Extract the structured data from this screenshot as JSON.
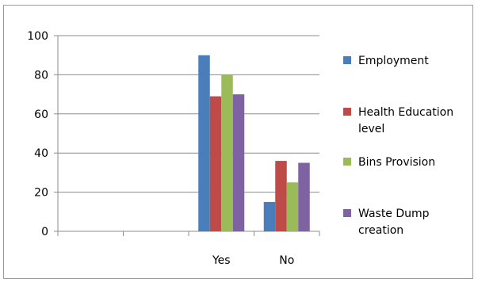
{
  "chart_data": {
    "type": "bar",
    "categories": [
      "",
      "",
      "Yes",
      "No"
    ],
    "ylim": [
      0,
      100
    ],
    "yticks": [
      0,
      20,
      40,
      60,
      80,
      100
    ],
    "grid": true,
    "legend_position": "right",
    "series": [
      {
        "name": "Employment",
        "color": "#4a7ebb",
        "values": [
          null,
          null,
          90,
          15
        ]
      },
      {
        "name": "Health Education level",
        "color": "#be4b48",
        "values": [
          null,
          null,
          69,
          36
        ]
      },
      {
        "name": "Bins Provision",
        "color": "#9bbb59",
        "values": [
          null,
          null,
          80,
          25
        ]
      },
      {
        "name": "Waste Dump creation",
        "color": "#7f62a1",
        "values": [
          null,
          null,
          70,
          35
        ]
      }
    ]
  }
}
